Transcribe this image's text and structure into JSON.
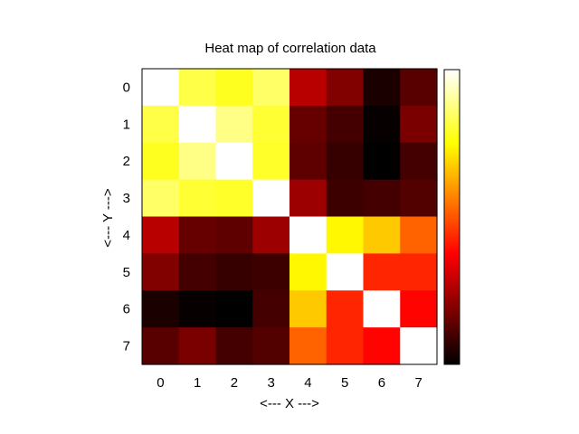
{
  "chart_data": {
    "type": "heatmap",
    "title": "Heat map of correlation data",
    "xlabel": "<--- X --->",
    "ylabel": "<--- Y --->",
    "x_categories": [
      "0",
      "1",
      "2",
      "3",
      "4",
      "5",
      "6",
      "7"
    ],
    "y_categories": [
      "0",
      "1",
      "2",
      "3",
      "4",
      "5",
      "6",
      "7"
    ],
    "colormap": "hot",
    "colorbar": true,
    "value_range": [
      0,
      1
    ],
    "values": [
      [
        1.0,
        0.82,
        0.78,
        0.85,
        0.27,
        0.19,
        0.04,
        0.13
      ],
      [
        0.82,
        1.0,
        0.88,
        0.8,
        0.15,
        0.1,
        0.01,
        0.18
      ],
      [
        0.78,
        0.88,
        1.0,
        0.79,
        0.14,
        0.08,
        0.0,
        0.1
      ],
      [
        0.85,
        0.8,
        0.79,
        1.0,
        0.23,
        0.09,
        0.1,
        0.12
      ],
      [
        0.27,
        0.15,
        0.14,
        0.23,
        1.0,
        0.74,
        0.67,
        0.52
      ],
      [
        0.19,
        0.1,
        0.08,
        0.09,
        0.74,
        1.0,
        0.43,
        0.43
      ],
      [
        0.04,
        0.01,
        0.0,
        0.1,
        0.67,
        0.43,
        1.0,
        0.38
      ],
      [
        0.13,
        0.18,
        0.1,
        0.12,
        0.52,
        0.43,
        0.38,
        1.0
      ]
    ]
  }
}
